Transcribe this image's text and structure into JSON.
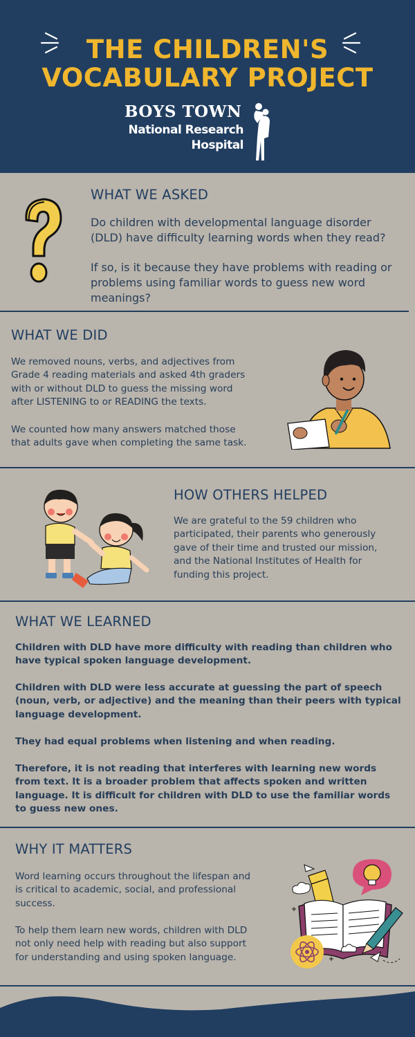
{
  "header": {
    "title_line1": "THE CHILDREN'S",
    "title_line2": "VOCABULARY PROJECT",
    "logo_line1": "BOYS TOWN",
    "logo_line2": "National Research",
    "logo_line3": "Hospital"
  },
  "sections": {
    "asked": {
      "heading": "WHAT WE ASKED",
      "para1_lines": [
        "Do children with developmental language disorder",
        "(DLD) have difficulty learning words when they read?"
      ],
      "para2_lines": [
        "If so, is it because they have problems with reading or",
        "problems using familiar words to guess new word",
        "meanings?"
      ]
    },
    "did": {
      "heading": "WHAT WE DID",
      "para1_lines": [
        "We removed nouns, verbs, and adjectives  from",
        "Grade 4 reading materials and asked 4th graders",
        "with or without DLD to guess the missing word",
        "after LISTENING to or READING the texts."
      ],
      "para2_lines": [
        "We counted how many answers matched those",
        "that adults gave when completing the same task."
      ]
    },
    "helped": {
      "heading": "HOW OTHERS HELPED",
      "para_lines": [
        "We are grateful to the 59 children who",
        "participated, their parents who generously",
        "gave of their time and trusted our mission,",
        "and the National Institutes of Health for",
        "funding this project."
      ]
    },
    "learned": {
      "heading": "WHAT WE LEARNED",
      "para1_lines": [
        "Children with DLD have more difficulty with reading than children who",
        "have typical spoken language development."
      ],
      "para2_lines": [
        "Children with DLD were less accurate at guessing the part of speech",
        "(noun, verb, or adjective) and the meaning than their peers with typical",
        "language development."
      ],
      "para3_lines": [
        "They had equal problems when listening and when reading."
      ],
      "para4_lines": [
        "Therefore, it is not reading that interferes with learning new words",
        "from text. It is a broader problem that affects spoken and written",
        "language. It is difficult for children with DLD to use the familiar words",
        "to guess new ones."
      ]
    },
    "matters": {
      "heading": "WHY IT MATTERS",
      "para1_lines": [
        "Word learning occurs throughout the lifespan and",
        "is critical to academic, social, and professional",
        "success."
      ],
      "para2_lines": [
        "To help them learn new words, children with DLD",
        "not only need help with reading but also support",
        "for understanding and using spoken language."
      ]
    }
  },
  "colors": {
    "navy": "#213e60",
    "gold": "#f0b62e",
    "background": "#b9b4ac",
    "text": "#273e58"
  },
  "icons": [
    "question-mark-icon",
    "boy-writing-illustration",
    "children-helping-illustration",
    "book-and-ideas-illustration"
  ]
}
